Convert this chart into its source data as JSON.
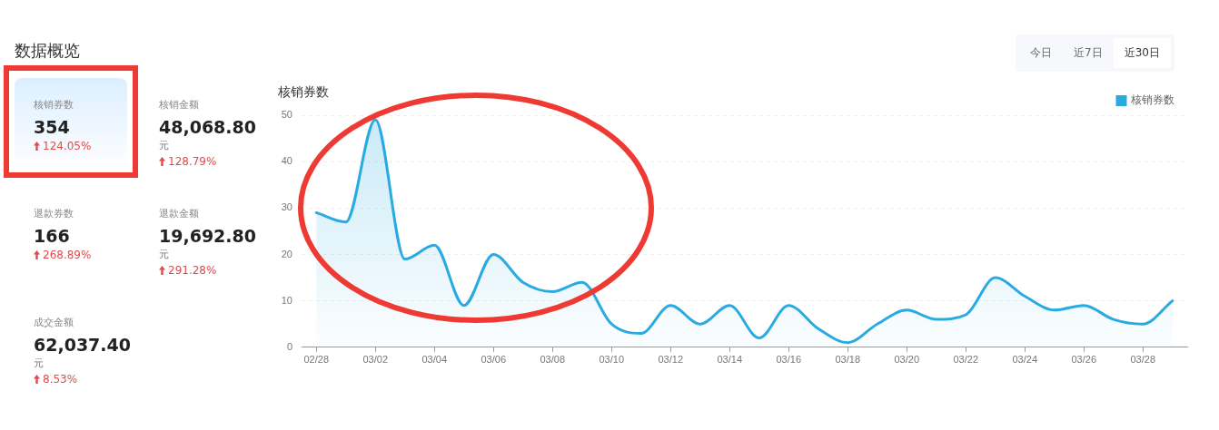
{
  "chart_data": [
    {
      "type": "other",
      "title": "数据概览",
      "categories": [
        "核销券数",
        "核销金额",
        "退款券数",
        "退款金额",
        "成交金额"
      ],
      "annotations": [
        {
          "text": "354",
          "x": "核销券数"
        },
        {
          "text": "124.05%",
          "x": "核销券数"
        },
        {
          "text": "48,068.80",
          "x": "核销金额"
        },
        {
          "text": "元",
          "x": "核销金额"
        },
        {
          "text": "128.79%",
          "x": "核销金额"
        },
        {
          "text": "166",
          "x": "退款券数"
        },
        {
          "text": "268.89%",
          "x": "退款券数"
        },
        {
          "text": "19,692.80",
          "x": "退款金额"
        },
        {
          "text": "元",
          "x": "退款金额"
        },
        {
          "text": "291.28%",
          "x": "退款金额"
        },
        {
          "text": "62,037.40",
          "x": "成交金额"
        },
        {
          "text": "元",
          "x": "成交金额"
        },
        {
          "text": "8.53%",
          "x": "成交金额"
        },
        "今日",
        "近7日",
        "近30日"
      ]
    },
    {
      "type": "area",
      "title": "核销券数",
      "categories": [
        "02/28",
        null,
        "03/02",
        null,
        "03/04",
        null,
        "03/06",
        null,
        "03/08",
        null,
        "03/10",
        null,
        "03/12",
        null,
        "03/14",
        null,
        "03/16",
        null,
        "03/18",
        null,
        "03/20",
        null,
        "03/22",
        null,
        "03/24",
        null,
        "03/26",
        null,
        "03/28",
        null
      ],
      "series": [
        {
          "name": "核销券数",
          "color": "#29abe2",
          "values": [
            29,
            27,
            49,
            19,
            22,
            9,
            20,
            14,
            12,
            14,
            5,
            3,
            9,
            5,
            9,
            2,
            9,
            4,
            1,
            5,
            8,
            6,
            7,
            15,
            11,
            8,
            9,
            6,
            5,
            10
          ]
        }
      ],
      "ylim": [
        0,
        50
      ],
      "yticks": [
        0,
        10,
        20,
        30,
        40,
        50
      ],
      "grid": "y",
      "legend": "top right",
      "marker": "none"
    }
  ]
}
